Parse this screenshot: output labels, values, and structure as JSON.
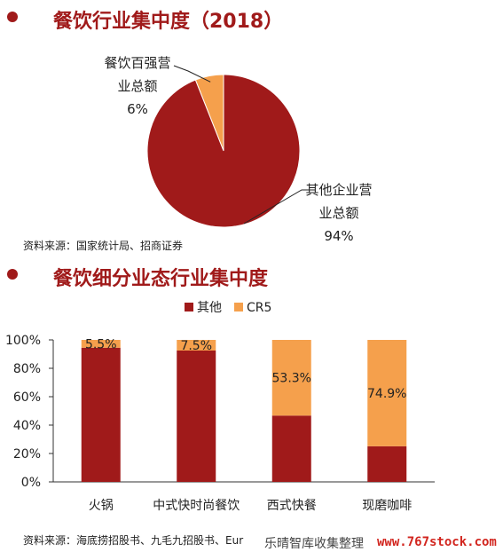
{
  "colors": {
    "dark_red": "#a01a1a",
    "orange": "#f5a04c",
    "accent_red": "#d2261f"
  },
  "pie_section": {
    "title": "餐饮行业集中度（2018）",
    "label_top_line1": "餐饮百强营",
    "label_top_line2": "业总额",
    "label_top_pct": "6%",
    "label_bottom_line1": "其他企业营",
    "label_bottom_line2": "业总额",
    "label_bottom_pct": "94%",
    "source": "资料来源：国家统计局、招商证券"
  },
  "bar_section": {
    "title": "餐饮细分业态行业集中度",
    "source": "资料来源：海底捞招股书、九毛九招股书、Eur"
  },
  "watermark": {
    "text": "乐晴智库收集整理",
    "url": "www.767stock.com"
  },
  "chart_data": [
    {
      "type": "pie",
      "title": "餐饮行业集中度（2018）",
      "slices": [
        {
          "label": "餐饮百强营业总额",
          "value": 6,
          "color": "#f5a04c"
        },
        {
          "label": "其他企业营业总额",
          "value": 94,
          "color": "#a01a1a"
        }
      ]
    },
    {
      "type": "bar",
      "stacked": true,
      "title": "餐饮细分业态行业集中度",
      "categories": [
        "火锅",
        "中式快时尚餐饮",
        "西式快餐",
        "现磨咖啡"
      ],
      "series": [
        {
          "name": "其他",
          "values": [
            94.5,
            92.5,
            46.7,
            25.1
          ],
          "color": "#a01a1a"
        },
        {
          "name": "CR5",
          "values": [
            5.5,
            7.5,
            53.3,
            74.9
          ],
          "color": "#f5a04c",
          "labels": [
            "5.5%",
            "7.5%",
            "53.3%",
            "74.9%"
          ]
        }
      ],
      "ylim": [
        0,
        100
      ],
      "yticks": [
        "0%",
        "20%",
        "40%",
        "60%",
        "80%",
        "100%"
      ],
      "legend_position": "top",
      "grid": false
    }
  ]
}
